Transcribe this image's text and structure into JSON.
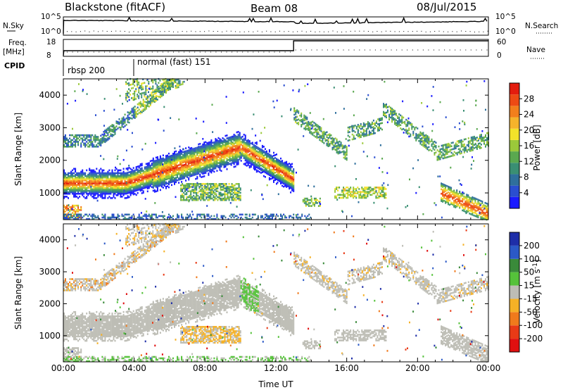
{
  "header": {
    "station": "Blackstone (fitACF)",
    "beam": "Beam 08",
    "date": "08/Jul/2015"
  },
  "status_panels": {
    "nsky_label": "N.Sky",
    "nsearch_label": "N.Search",
    "nsky_ticks": [
      "10^5",
      "10^0"
    ],
    "nsearch_ticks": [
      "10^5",
      "10^0"
    ],
    "freq_label": "Freq.",
    "freq_unit": "[MHz]",
    "freq_ticks": [
      "18",
      "8"
    ],
    "nave_label": "Nave",
    "nave_ticks": [
      "60",
      "0"
    ],
    "cpid_label": "CPID",
    "cpid_segments": [
      "rbsp 200",
      "normal (fast) 151"
    ]
  },
  "chart_data": [
    {
      "type": "heatmap",
      "title": "",
      "xlabel": "",
      "ylabel": "Slant Range [km]",
      "x_tick_labels": [
        "00:00",
        "04:00",
        "08:00",
        "12:00",
        "16:00",
        "20:00",
        "00:00"
      ],
      "xlim_hours": [
        0,
        24
      ],
      "y_ticks": [
        "1000",
        "2000",
        "3000",
        "4000"
      ],
      "ylim_km": [
        180,
        4500
      ],
      "colorbar": {
        "label": "Power [dB]",
        "tick_labels": [
          "4",
          "8",
          "12",
          "16",
          "20",
          "24",
          "28"
        ],
        "colors": [
          "#1a1aff",
          "#2a4ed0",
          "#2f6f9c",
          "#3a8f73",
          "#5aa84f",
          "#9bc93a",
          "#f2e22a",
          "#f5b32b",
          "#f27f1c",
          "#ed4a14",
          "#e31c0e"
        ]
      },
      "features": [
        {
          "name": "main-band",
          "hours": [
            0.0,
            13.0
          ],
          "range_km": [
            1150,
            2600
          ],
          "level": "high"
        },
        {
          "name": "upper-arc-left",
          "hours": [
            0.0,
            6.0
          ],
          "range_km": [
            2400,
            4500
          ],
          "level": "low"
        },
        {
          "name": "mid-patch",
          "hours": [
            6.5,
            10.0
          ],
          "range_km": [
            800,
            1300
          ],
          "level": "medium"
        },
        {
          "name": "near-range-right",
          "hours": [
            21.3,
            24.0
          ],
          "range_km": [
            300,
            1100
          ],
          "level": "high"
        },
        {
          "name": "upper-arcs-right",
          "hours": [
            13.0,
            24.0
          ],
          "range_km": [
            1900,
            3800
          ],
          "level": "medium"
        }
      ]
    },
    {
      "type": "heatmap",
      "title": "",
      "xlabel": "Time UT",
      "ylabel": "Slant Range [km]",
      "x_tick_labels": [
        "00:00",
        "04:00",
        "08:00",
        "12:00",
        "16:00",
        "20:00",
        "00:00"
      ],
      "xlim_hours": [
        0,
        24
      ],
      "y_ticks": [
        "1000",
        "2000",
        "3000",
        "4000"
      ],
      "ylim_km": [
        180,
        4500
      ],
      "colorbar": {
        "label": "Velocity [m s^-1]",
        "tick_labels": [
          "200",
          "100",
          "50",
          "15",
          "-15",
          "-50",
          "-100",
          "-200"
        ],
        "colors": [
          "#1e2ea8",
          "#2b59c7",
          "#3a8a3a",
          "#55c23a",
          "#bdbdb5",
          "#f5b126",
          "#f07a1c",
          "#e83a16",
          "#e01010"
        ]
      }
    }
  ]
}
